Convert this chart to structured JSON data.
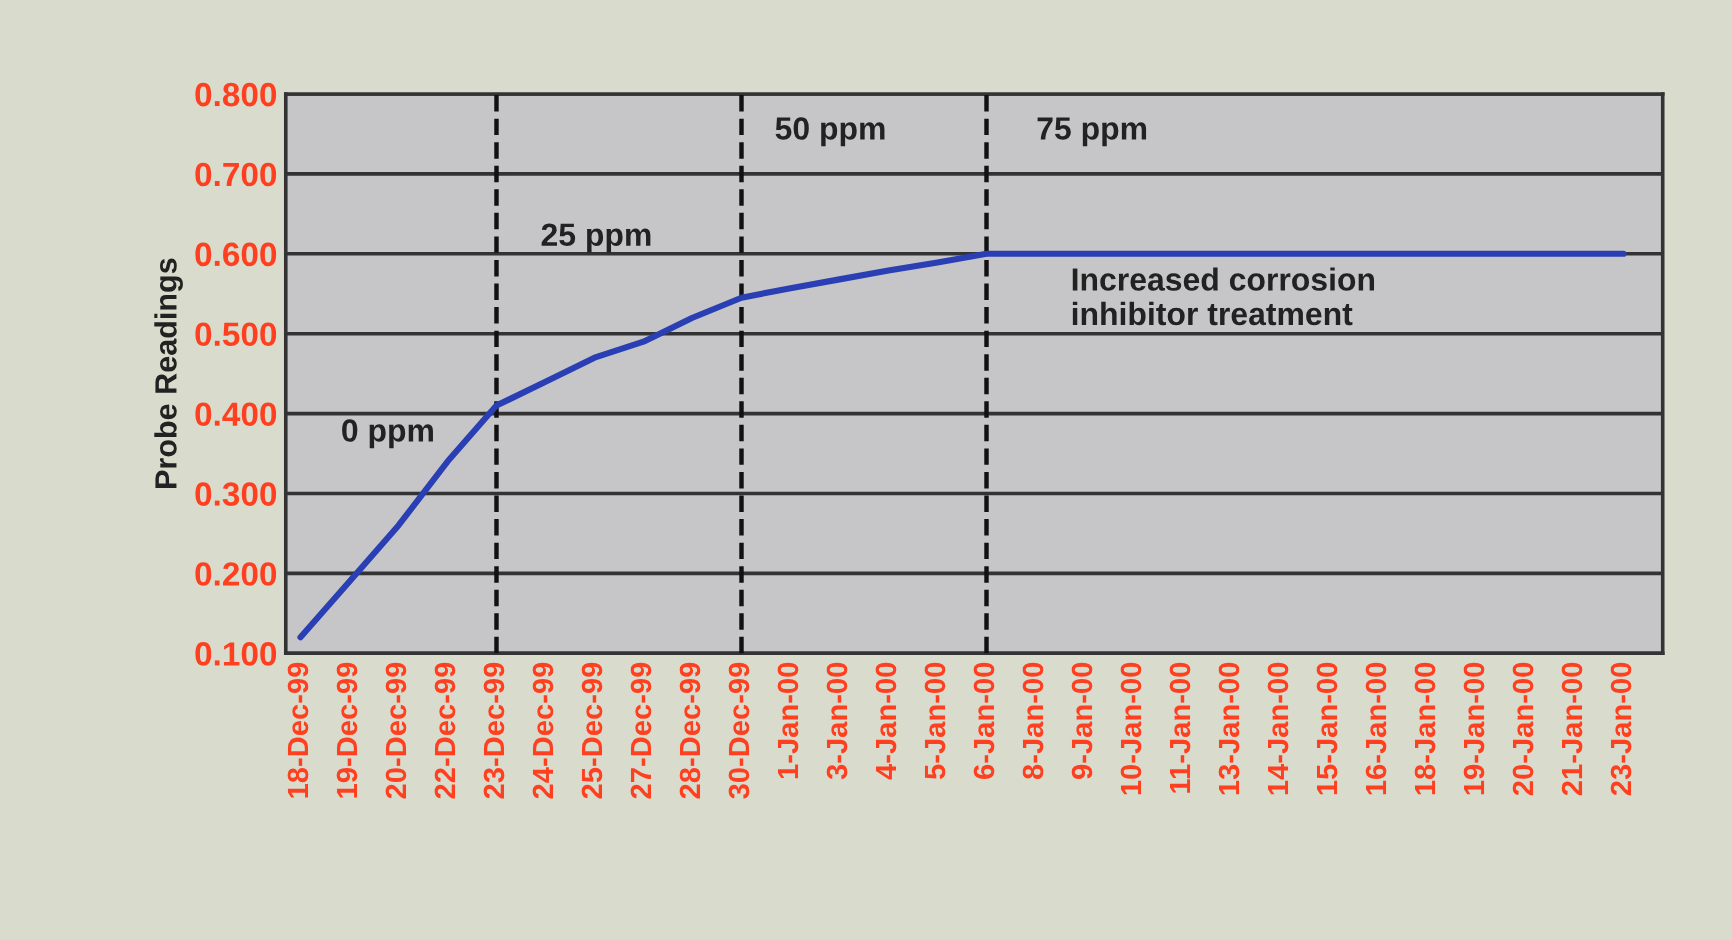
{
  "chart_data": {
    "type": "line",
    "ylabel": "Probe Readings",
    "categories": [
      "18-Dec-99",
      "19-Dec-99",
      "20-Dec-99",
      "22-Dec-99",
      "23-Dec-99",
      "24-Dec-99",
      "25-Dec-99",
      "27-Dec-99",
      "28-Dec-99",
      "30-Dec-99",
      "1-Jan-00",
      "3-Jan-00",
      "4-Jan-00",
      "5-Jan-00",
      "6-Jan-00",
      "8-Jan-00",
      "9-Jan-00",
      "10-Jan-00",
      "11-Jan-00",
      "13-Jan-00",
      "14-Jan-00",
      "15-Jan-00",
      "16-Jan-00",
      "18-Jan-00",
      "19-Jan-00",
      "20-Jan-00",
      "21-Jan-00",
      "23-Jan-00"
    ],
    "series": [
      {
        "color": "#2b3fb5",
        "values": [
          0.12,
          0.19,
          0.26,
          0.34,
          0.41,
          0.44,
          0.47,
          0.49,
          0.52,
          0.545,
          0.557,
          0.568,
          0.579,
          0.589,
          0.6,
          0.6,
          0.6,
          0.6,
          0.6,
          0.6,
          0.6,
          0.6,
          0.6,
          0.6,
          0.6,
          0.6,
          0.6,
          0.6
        ]
      }
    ],
    "ylim": [
      0.1,
      0.8
    ],
    "yticks": [
      {
        "value": 0.1,
        "label": "0.100"
      },
      {
        "value": 0.2,
        "label": "0.200"
      },
      {
        "value": 0.3,
        "label": "0.300"
      },
      {
        "value": 0.4,
        "label": "0.400"
      },
      {
        "value": 0.5,
        "label": "0.500"
      },
      {
        "value": 0.6,
        "label": "0.600"
      },
      {
        "value": 0.7,
        "label": "0.700"
      },
      {
        "value": 0.8,
        "label": "0.800"
      }
    ],
    "grid": "y",
    "legend": false,
    "marker": "none",
    "line_style": "solid",
    "ref_lines": [
      {
        "axis": "x",
        "value": "23-Dec-99",
        "color": "#111111",
        "line_style": "dashed"
      },
      {
        "axis": "x",
        "value": "30-Dec-99",
        "color": "#111111",
        "line_style": "dashed"
      },
      {
        "axis": "x",
        "value": "6-Jan-00",
        "color": "#111111",
        "line_style": "dashed"
      }
    ],
    "annotations": [
      "0 ppm",
      "25 ppm",
      "50 ppm",
      "75 ppm",
      "Increased corrosion\ninhibitor treatment"
    ]
  }
}
